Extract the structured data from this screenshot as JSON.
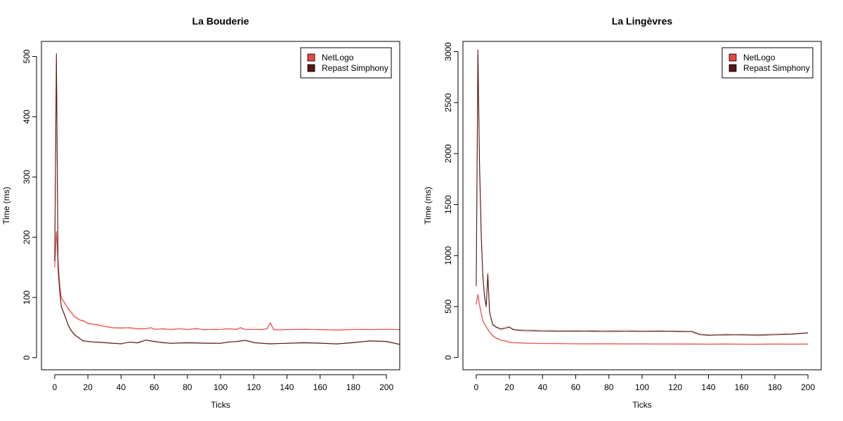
{
  "chart_data": [
    {
      "type": "line",
      "title": "La Bouderie",
      "xlabel": "Ticks",
      "ylabel": "Time (ms)",
      "xlim": [
        -8,
        208
      ],
      "ylim": [
        -20,
        525
      ],
      "xticks": [
        0,
        20,
        40,
        60,
        80,
        100,
        120,
        140,
        160,
        180,
        200
      ],
      "yticks": [
        0,
        100,
        200,
        300,
        400,
        500
      ],
      "legend_position": "top-right",
      "series": [
        {
          "name": "NetLogo",
          "color": "#e8473d",
          "x": [
            0,
            1,
            2,
            3,
            4,
            6,
            8,
            10,
            12,
            15,
            18,
            20,
            25,
            30,
            35,
            40,
            45,
            50,
            55,
            58,
            60,
            65,
            70,
            75,
            80,
            85,
            90,
            95,
            100,
            105,
            110,
            112,
            115,
            120,
            125,
            128,
            130,
            132,
            135,
            140,
            150,
            160,
            170,
            180,
            190,
            200,
            208
          ],
          "y": [
            150,
            210,
            160,
            120,
            100,
            90,
            82,
            75,
            68,
            63,
            60,
            57,
            55,
            52,
            50,
            49,
            50,
            48,
            48,
            50,
            47,
            48,
            47,
            48,
            47,
            48,
            47,
            47,
            47,
            48,
            47,
            50,
            47,
            47,
            47,
            48,
            58,
            47,
            46,
            47,
            47,
            47,
            46,
            47,
            47,
            47,
            47
          ]
        },
        {
          "name": "Repast Simphony",
          "color": "#5a1510",
          "x": [
            0,
            1,
            2,
            3,
            4,
            6,
            8,
            10,
            12,
            15,
            17,
            20,
            25,
            30,
            35,
            40,
            45,
            50,
            55,
            60,
            65,
            70,
            80,
            90,
            100,
            105,
            110,
            115,
            120,
            125,
            130,
            140,
            150,
            160,
            170,
            180,
            190,
            200,
            208
          ],
          "y": [
            160,
            505,
            150,
            110,
            85,
            70,
            55,
            45,
            38,
            32,
            28,
            27,
            26,
            25,
            24,
            23,
            26,
            25,
            29,
            27,
            25,
            24,
            25,
            24,
            24,
            26,
            27,
            29,
            25,
            24,
            23,
            24,
            25,
            24,
            23,
            25,
            28,
            27,
            22
          ]
        }
      ]
    },
    {
      "type": "line",
      "title": "La Lingèvres",
      "xlabel": "Ticks",
      "ylabel": "Time (ms)",
      "xlim": [
        -8,
        208
      ],
      "ylim": [
        -120,
        3100
      ],
      "xticks": [
        0,
        20,
        40,
        60,
        80,
        100,
        120,
        140,
        160,
        180,
        200
      ],
      "yticks": [
        0,
        500,
        1000,
        1500,
        2000,
        2500,
        3000
      ],
      "legend_position": "top-right",
      "series": [
        {
          "name": "NetLogo",
          "color": "#e8473d",
          "x": [
            0,
            1,
            2,
            3,
            4,
            6,
            8,
            10,
            12,
            15,
            18,
            20,
            25,
            30,
            40,
            50,
            60,
            70,
            80,
            90,
            100,
            110,
            120,
            130,
            140,
            150,
            160,
            170,
            180,
            190,
            200
          ],
          "y": [
            520,
            620,
            520,
            430,
            360,
            300,
            250,
            215,
            190,
            170,
            160,
            150,
            145,
            140,
            138,
            136,
            135,
            135,
            134,
            134,
            133,
            133,
            133,
            132,
            132,
            132,
            132,
            131,
            132,
            132,
            132
          ]
        },
        {
          "name": "Repast Simphony",
          "color": "#5a1510",
          "x": [
            0,
            1,
            2,
            3,
            4,
            5,
            6,
            7,
            8,
            9,
            10,
            12,
            15,
            18,
            20,
            22,
            25,
            30,
            40,
            50,
            60,
            70,
            80,
            90,
            100,
            110,
            120,
            130,
            135,
            140,
            150,
            160,
            170,
            180,
            190,
            200
          ],
          "y": [
            700,
            3020,
            1900,
            1200,
            800,
            600,
            500,
            820,
            450,
            380,
            320,
            300,
            280,
            290,
            300,
            275,
            270,
            265,
            260,
            260,
            258,
            260,
            258,
            258,
            258,
            257,
            258,
            255,
            225,
            220,
            222,
            225,
            220,
            225,
            230,
            240
          ]
        }
      ]
    }
  ]
}
